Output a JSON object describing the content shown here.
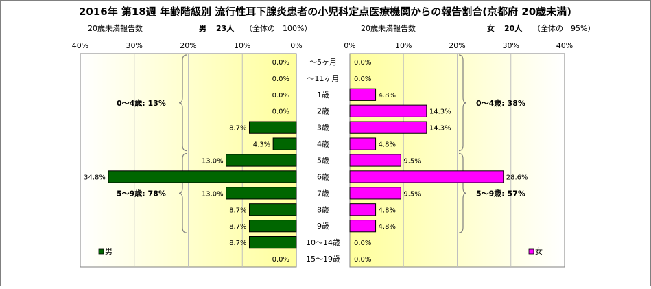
{
  "chart_data": {
    "type": "bar",
    "title": "2016年 第18週 年齢階級別 流行性耳下腺炎患者の小児科定点医療機関からの報告割合(京都府 20歳未満)",
    "categories": [
      "～5ヶ月",
      "～11ヶ月",
      "1歳",
      "2歳",
      "3歳",
      "4歳",
      "5歳",
      "6歳",
      "7歳",
      "8歳",
      "9歳",
      "10～14歳",
      "15～19歳"
    ],
    "series": [
      {
        "name": "男",
        "values": [
          0.0,
          0.0,
          0.0,
          0.0,
          8.7,
          4.3,
          13.0,
          34.8,
          13.0,
          8.7,
          8.7,
          8.7,
          0.0
        ],
        "labels": [
          "0.0%",
          "0.0%",
          "0.0%",
          "0.0%",
          "8.7%",
          "4.3%",
          "13.0%",
          "34.8%",
          "13.0%",
          "8.7%",
          "8.7%",
          "8.7%",
          "0.0%"
        ]
      },
      {
        "name": "女",
        "values": [
          0.0,
          0.0,
          4.8,
          14.3,
          14.3,
          4.8,
          9.5,
          28.6,
          9.5,
          4.8,
          4.8,
          0.0,
          0.0
        ],
        "labels": [
          "0.0%",
          "0.0%",
          "4.8%",
          "14.3%",
          "14.3%",
          "4.8%",
          "9.5%",
          "28.6%",
          "9.5%",
          "4.8%",
          "4.8%",
          "0.0%",
          "0.0%"
        ]
      }
    ],
    "xlim": [
      0,
      40
    ],
    "ticks": [
      "40%",
      "30%",
      "20%",
      "10%",
      "0%",
      "0%",
      "10%",
      "20%",
      "30%",
      "40%"
    ],
    "left_header": {
      "label": "20歳未満報告数",
      "sex": "男",
      "count": "23人",
      "note": "（全体の　100%）"
    },
    "right_header": {
      "label": "20歳未満報告数",
      "sex": "女",
      "count": "20人",
      "note": "（全体の　95%）"
    },
    "group_annotations": {
      "male": [
        "0～4歳: 13%",
        "5～9歳: 78%"
      ],
      "female": [
        "0～4歳: 38%",
        "5～9歳: 57%"
      ]
    },
    "legend": {
      "male": "男",
      "female": "女"
    },
    "colors": {
      "male": "#006600",
      "female": "#ff00ff",
      "bg_light": "#fffff0",
      "bg_center": "#ffff99"
    }
  }
}
